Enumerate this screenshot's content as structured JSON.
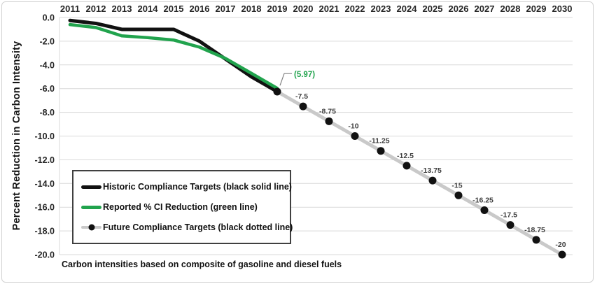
{
  "colors": {
    "black_line": "#111111",
    "green_line": "#21a34d",
    "future_line": "#c9c9c9",
    "marker": "#111111",
    "gridline": "#d9d9d9",
    "axis_text": "#262626",
    "point_label_text": "#3f3f3f",
    "annotation_text": "#21a34d",
    "leader_line": "#808080"
  },
  "chart_data": {
    "type": "line",
    "title": "",
    "xlabel": "",
    "ylabel": "Percent Reduction in Carbon Intensity",
    "footnote": "Carbon intensities based on composite of gasoline and diesel fuels",
    "x": [
      2011,
      2012,
      2013,
      2014,
      2015,
      2016,
      2017,
      2018,
      2019,
      2020,
      2021,
      2022,
      2023,
      2024,
      2025,
      2026,
      2027,
      2028,
      2029,
      2030
    ],
    "ylim": [
      -20,
      0
    ],
    "y_tick_labels": [
      "0.0",
      "-2.0",
      "-4.0",
      "-6.0",
      "-8.0",
      "-10.0",
      "-12.0",
      "-14.0",
      "-16.0",
      "-18.0",
      "-20.0"
    ],
    "grid": true,
    "legend_position": "inside-lower-left",
    "series": [
      {
        "name": "Historic Compliance Targets (black solid line)",
        "line_style": "solid",
        "x": [
          2011,
          2012,
          2013,
          2014,
          2015,
          2016,
          2017,
          2018,
          2019
        ],
        "values": [
          -0.25,
          -0.5,
          -1.0,
          -1.0,
          -1.0,
          -2.0,
          -3.5,
          -5.0,
          -6.25
        ]
      },
      {
        "name": "Reported % CI Reduction (green line)",
        "line_style": "solid",
        "x": [
          2011,
          2012,
          2013,
          2014,
          2015,
          2016,
          2017,
          2018,
          2019
        ],
        "values": [
          -0.6,
          -0.85,
          -1.55,
          -1.7,
          -1.9,
          -2.5,
          -3.45,
          -4.7,
          -5.97
        ]
      },
      {
        "name": "Future Compliance Targets (black dotted line)",
        "line_style": "thick-gray-with-black-dots",
        "x": [
          2019,
          2020,
          2021,
          2022,
          2023,
          2024,
          2025,
          2026,
          2027,
          2028,
          2029,
          2030
        ],
        "values": [
          -6.25,
          -7.5,
          -8.75,
          -10,
          -11.25,
          -12.5,
          -13.75,
          -15,
          -16.25,
          -17.5,
          -18.75,
          -20
        ],
        "point_labels": [
          "",
          "-7.5",
          "-8.75",
          "-10",
          "-11.25",
          "-12.5",
          "-13.75",
          "-15",
          "-16.25",
          "-17.5",
          "-18.75",
          "-20"
        ]
      }
    ],
    "annotation": {
      "text": "(5.97)",
      "x": 2019,
      "y": -5.97
    }
  }
}
